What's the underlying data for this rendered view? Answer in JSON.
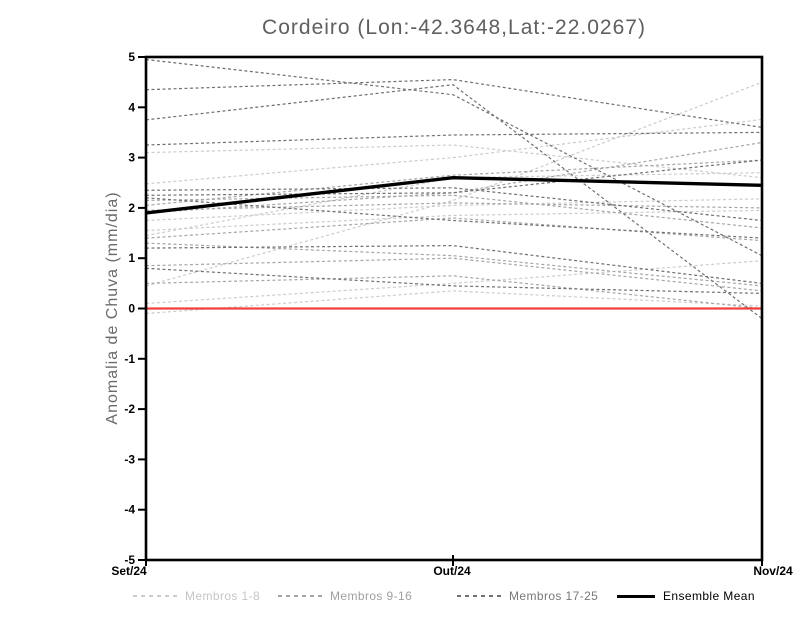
{
  "chart_data": {
    "type": "line",
    "title": "Cordeiro (Lon:-42.3648,Lat:-22.0267)",
    "ylabel": "Anomalia de Chuva (mm/dia)",
    "xlabel": "",
    "x_categories": [
      "Set/24",
      "Out/24",
      "Nov/24"
    ],
    "ylim": [
      -5,
      5
    ],
    "yticks": [
      5,
      4,
      3,
      2,
      1,
      0,
      -1,
      -2,
      -3,
      -4,
      -5
    ],
    "grid": false,
    "zero_line": {
      "value": 0,
      "color": "#f0423c"
    },
    "frame_color": "#000000",
    "legend": {
      "position": "bottom",
      "entries": [
        {
          "label": "Membros 1-8",
          "text_color": "#c6c6c6",
          "line_color": "#cccccc",
          "line_style": "dashed"
        },
        {
          "label": "Membros 9-16",
          "text_color": "#a0a0a0",
          "line_color": "#a6a6a6",
          "line_style": "dashed"
        },
        {
          "label": "Membros 17-25",
          "text_color": "#787878",
          "line_color": "#707070",
          "line_style": "dashed"
        },
        {
          "label": "Ensemble Mean",
          "text_color": "#000000",
          "line_color": "#000000",
          "line_style": "solid"
        }
      ]
    },
    "series": [
      {
        "name": "Membro 1",
        "group": 0,
        "values": [
          2.48,
          3.0,
          3.76
        ]
      },
      {
        "name": "Membro 2",
        "group": 0,
        "values": [
          1.75,
          2.05,
          2.18
        ]
      },
      {
        "name": "Membro 3",
        "group": 0,
        "values": [
          1.55,
          1.85,
          1.95
        ]
      },
      {
        "name": "Membro 4",
        "group": 0,
        "values": [
          1.45,
          2.6,
          2.7
        ]
      },
      {
        "name": "Membro 5",
        "group": 0,
        "values": [
          0.45,
          2.15,
          4.5
        ]
      },
      {
        "name": "Membro 6",
        "group": 0,
        "values": [
          0.1,
          0.5,
          0.95
        ]
      },
      {
        "name": "Membro 7",
        "group": 0,
        "values": [
          -0.1,
          0.35,
          0.05
        ]
      },
      {
        "name": "Membro 8",
        "group": 0,
        "values": [
          3.1,
          3.25,
          2.6
        ]
      },
      {
        "name": "Membro 9",
        "group": 1,
        "values": [
          2.15,
          2.25,
          1.6
        ]
      },
      {
        "name": "Membro 10",
        "group": 1,
        "values": [
          1.4,
          1.8,
          1.35
        ]
      },
      {
        "name": "Membro 11",
        "group": 1,
        "values": [
          1.3,
          1.05,
          0.45
        ]
      },
      {
        "name": "Membro 12",
        "group": 1,
        "values": [
          0.85,
          1.0,
          0.35
        ]
      },
      {
        "name": "Membro 13",
        "group": 1,
        "values": [
          2.05,
          2.65,
          2.95
        ]
      },
      {
        "name": "Membro 14",
        "group": 1,
        "values": [
          1.95,
          2.1,
          2.0
        ]
      },
      {
        "name": "Membro 15",
        "group": 1,
        "values": [
          0.5,
          0.65,
          0.0
        ]
      },
      {
        "name": "Membro 16",
        "group": 1,
        "values": [
          1.9,
          2.3,
          3.3
        ]
      },
      {
        "name": "Membro 17",
        "group": 2,
        "values": [
          4.95,
          4.25,
          1.05
        ]
      },
      {
        "name": "Membro 18",
        "group": 2,
        "values": [
          4.35,
          4.55,
          3.6
        ]
      },
      {
        "name": "Membro 19",
        "group": 2,
        "values": [
          3.75,
          4.45,
          -0.2
        ]
      },
      {
        "name": "Membro 20",
        "group": 2,
        "values": [
          3.25,
          3.45,
          3.5
        ]
      },
      {
        "name": "Membro 21",
        "group": 2,
        "values": [
          2.35,
          2.4,
          1.75
        ]
      },
      {
        "name": "Membro 22",
        "group": 2,
        "values": [
          2.25,
          2.3,
          2.95
        ]
      },
      {
        "name": "Membro 23",
        "group": 2,
        "values": [
          2.2,
          1.75,
          1.4
        ]
      },
      {
        "name": "Membro 24",
        "group": 2,
        "values": [
          1.2,
          1.25,
          0.5
        ]
      },
      {
        "name": "Membro 25",
        "group": 2,
        "values": [
          0.8,
          0.45,
          0.3
        ]
      }
    ],
    "ensemble_mean": {
      "name": "Ensemble Mean",
      "values": [
        1.9,
        2.6,
        2.45
      ]
    }
  }
}
